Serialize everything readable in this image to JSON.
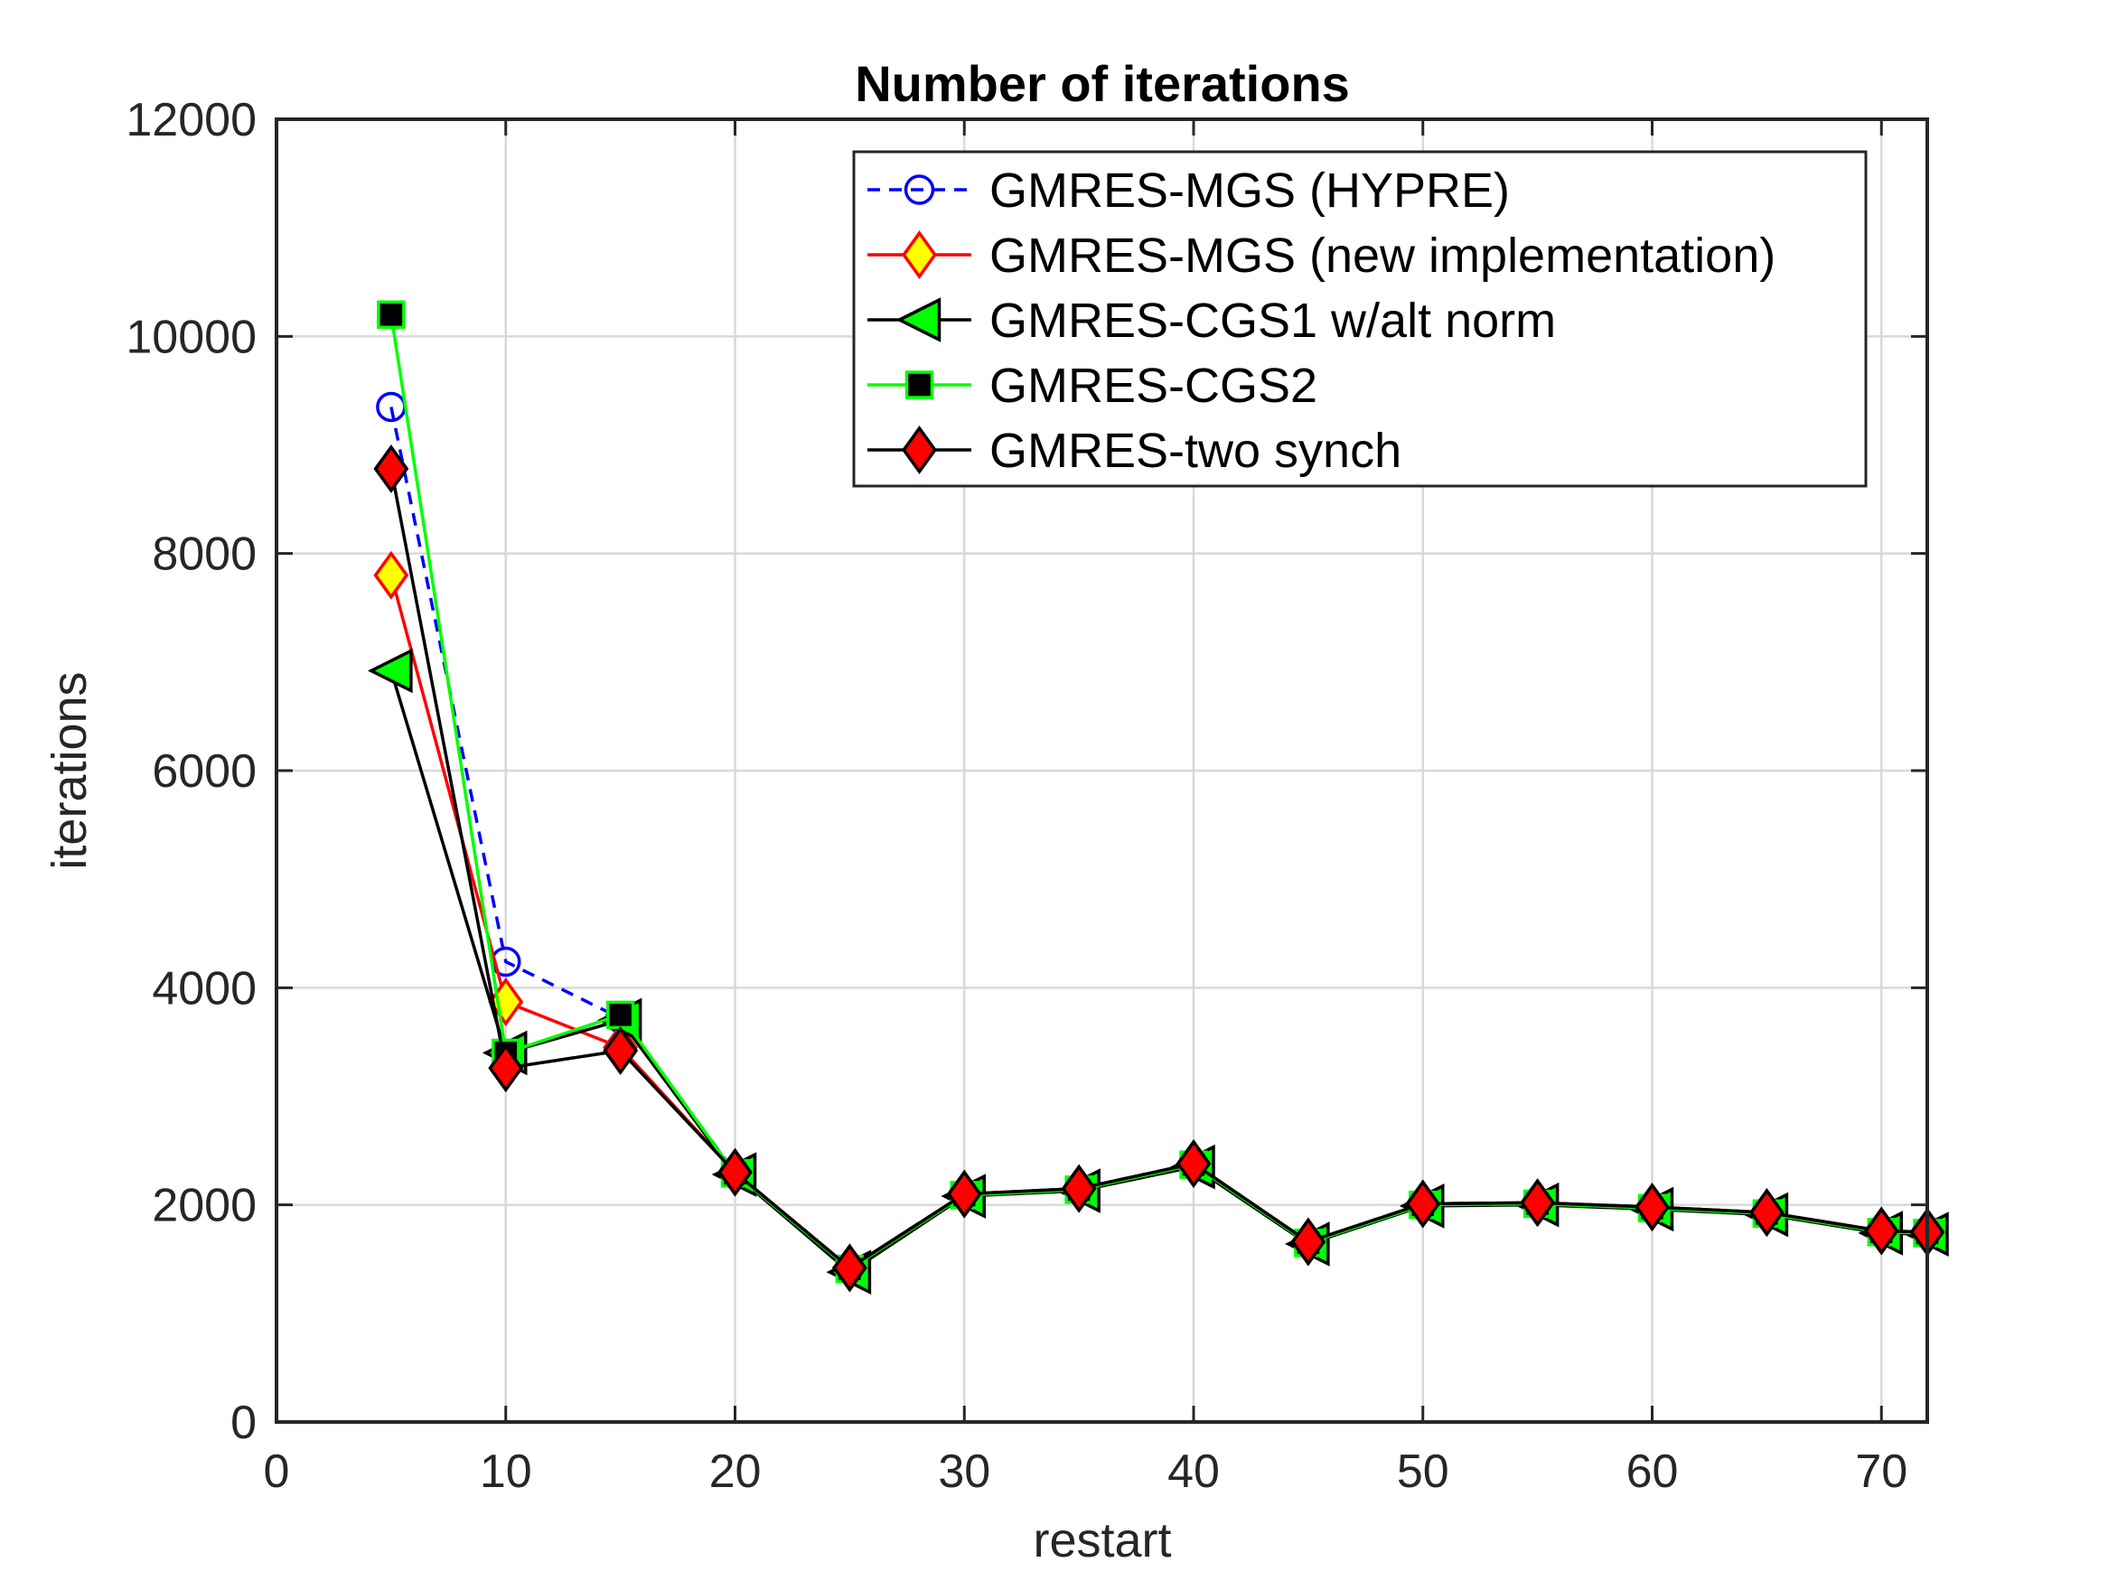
{
  "chart_data": {
    "type": "line",
    "title": "Number of iterations",
    "xlabel": "restart",
    "ylabel": "iterations",
    "xlim": [
      0,
      72
    ],
    "ylim": [
      0,
      12000
    ],
    "xticks": [
      0,
      10,
      20,
      30,
      40,
      50,
      60,
      70
    ],
    "yticks": [
      0,
      2000,
      4000,
      6000,
      8000,
      10000,
      12000
    ],
    "grid": true,
    "legend_position": "top-right",
    "series": [
      {
        "name": "GMRES-MGS (HYPRE)",
        "line_color": "#0000ff",
        "line_style": "dashed",
        "marker": "circle",
        "marker_edge": "#0000ff",
        "marker_face": "none",
        "x": [
          5,
          10,
          15,
          20,
          25,
          30,
          35,
          40,
          45,
          50,
          55,
          60,
          65,
          70,
          72
        ],
        "y": [
          9350,
          4240,
          3720,
          2300,
          1420,
          2100,
          2150,
          2380,
          1660,
          2010,
          2020,
          1980,
          1930,
          1760,
          1750
        ]
      },
      {
        "name": "GMRES-MGS (new implementation)",
        "line_color": "#ff0000",
        "line_style": "solid",
        "marker": "diamond",
        "marker_edge": "#ff0000",
        "marker_face": "#ffff00",
        "x": [
          5,
          10,
          15,
          20,
          25,
          30,
          35,
          40,
          45,
          50,
          55,
          60,
          65,
          70,
          72
        ],
        "y": [
          7800,
          3870,
          3450,
          2300,
          1420,
          2100,
          2150,
          2380,
          1660,
          2010,
          2020,
          1980,
          1930,
          1760,
          1750
        ]
      },
      {
        "name": "GMRES-CGS1 w/alt norm",
        "line_color": "#000000",
        "line_style": "solid",
        "marker": "triangle-left",
        "marker_edge": "#000000",
        "marker_face": "#00ff00",
        "x": [
          5,
          10,
          15,
          20,
          25,
          30,
          35,
          40,
          45,
          50,
          55,
          60,
          65,
          70,
          72
        ],
        "y": [
          6920,
          3400,
          3700,
          2280,
          1380,
          2080,
          2130,
          2350,
          1640,
          1990,
          2000,
          1960,
          1910,
          1740,
          1730
        ]
      },
      {
        "name": "GMRES-CGS2",
        "line_color": "#00ff00",
        "line_style": "solid",
        "marker": "square",
        "marker_edge": "#00ff00",
        "marker_face": "#000000",
        "x": [
          5,
          10,
          15,
          20,
          25,
          30,
          35,
          40,
          45,
          50,
          55,
          60,
          65,
          70,
          72
        ],
        "y": [
          10200,
          3400,
          3750,
          2290,
          1410,
          2090,
          2140,
          2370,
          1650,
          2000,
          2010,
          1970,
          1920,
          1750,
          1740
        ]
      },
      {
        "name": "GMRES-two synch",
        "line_color": "#000000",
        "line_style": "solid",
        "marker": "diamond",
        "marker_edge": "#000000",
        "marker_face": "#ff0000",
        "x": [
          5,
          10,
          15,
          20,
          25,
          30,
          35,
          40,
          45,
          50,
          55,
          60,
          65,
          70,
          72
        ],
        "y": [
          8780,
          3260,
          3420,
          2300,
          1420,
          2100,
          2150,
          2380,
          1660,
          2010,
          2020,
          1980,
          1930,
          1760,
          1750
        ]
      }
    ]
  }
}
